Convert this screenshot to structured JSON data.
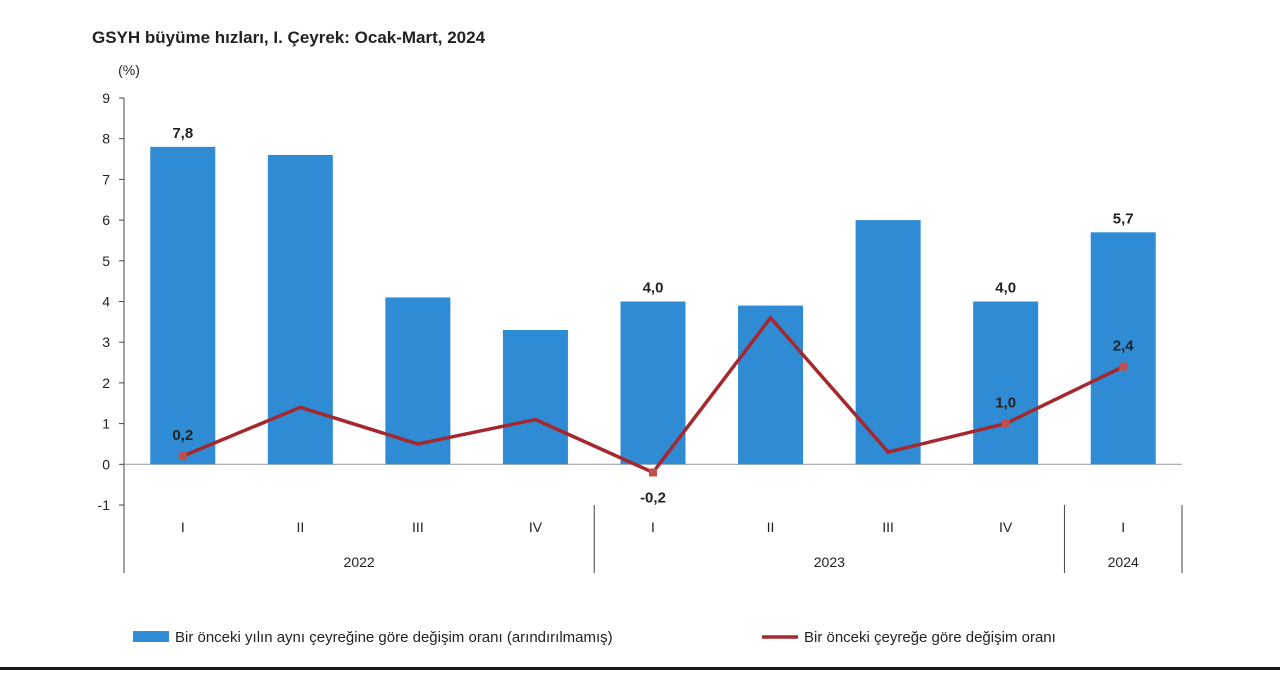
{
  "chart_data": {
    "type": "bar",
    "title": "GSYH büyüme hızları, I. Çeyrek: Ocak-Mart, 2024",
    "ylabel": "(%)",
    "ylim": [
      -1,
      9
    ],
    "yticks": [
      "9",
      "8",
      "7",
      "6",
      "5",
      "4",
      "3",
      "2",
      "1",
      "0",
      "-1"
    ],
    "categories": [
      "I",
      "II",
      "III",
      "IV",
      "I",
      "II",
      "III",
      "IV",
      "I"
    ],
    "years": [
      {
        "label": "2022",
        "span": 4
      },
      {
        "label": "2023",
        "span": 4
      },
      {
        "label": "2024",
        "span": 1
      }
    ],
    "series": [
      {
        "name": "Bir önceki yılın aynı çeyreğine göre değişim oranı (arındırılmamış)",
        "type": "bar",
        "color": "#2f8bd3",
        "values": [
          7.8,
          7.6,
          4.1,
          3.3,
          4.0,
          3.9,
          6.0,
          4.0,
          5.7
        ],
        "labels": [
          "7,8",
          "",
          "",
          "",
          "4,0",
          "",
          "",
          "4,0",
          "5,7"
        ]
      },
      {
        "name": "Bir önceki çeyreğe göre değişim oranı",
        "type": "line",
        "color": "#a5282e",
        "values": [
          0.2,
          1.4,
          0.5,
          1.1,
          -0.2,
          3.6,
          0.3,
          1.0,
          2.4
        ],
        "labels": [
          "0,2",
          "",
          "",
          "",
          "-0,2",
          "",
          "",
          "1,0",
          "2,4"
        ]
      }
    ],
    "legend": "bottom"
  }
}
